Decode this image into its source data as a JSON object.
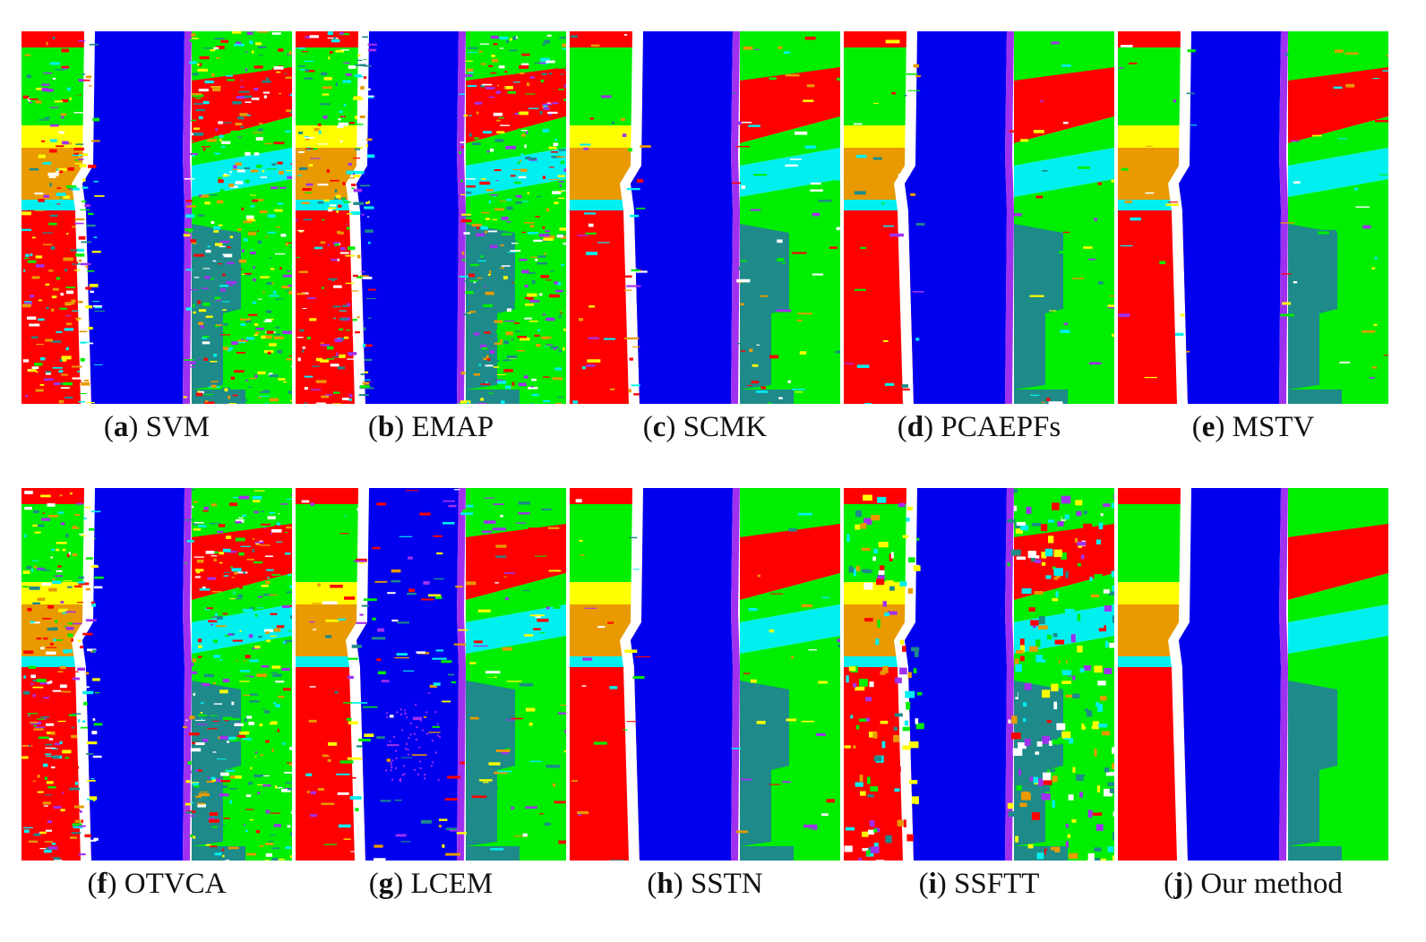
{
  "colors": {
    "red": "#ff0000",
    "green": "#00ee00",
    "blue": "#0000ee",
    "yellow": "#ffff00",
    "orange": "#e89a00",
    "cyan": "#00f0f0",
    "teal": "#1e8a8a",
    "purple": "#a030f0",
    "white": "#ffffff"
  },
  "panels": [
    {
      "letter": "a",
      "name": "SVM",
      "style": "noisy"
    },
    {
      "letter": "b",
      "name": "EMAP",
      "style": "noisy"
    },
    {
      "letter": "c",
      "name": "SCMK",
      "style": "scmk"
    },
    {
      "letter": "d",
      "name": "PCAEPFs",
      "style": "smooth"
    },
    {
      "letter": "e",
      "name": "MSTV",
      "style": "smooth"
    },
    {
      "letter": "f",
      "name": "OTVCA",
      "style": "noisy"
    },
    {
      "letter": "g",
      "name": "LCEM",
      "style": "lcem"
    },
    {
      "letter": "h",
      "name": "SSTN",
      "style": "smooth"
    },
    {
      "letter": "i",
      "name": "SSFTT",
      "style": "ssftt"
    },
    {
      "letter": "j",
      "name": "Our method",
      "style": "clean"
    }
  ]
}
